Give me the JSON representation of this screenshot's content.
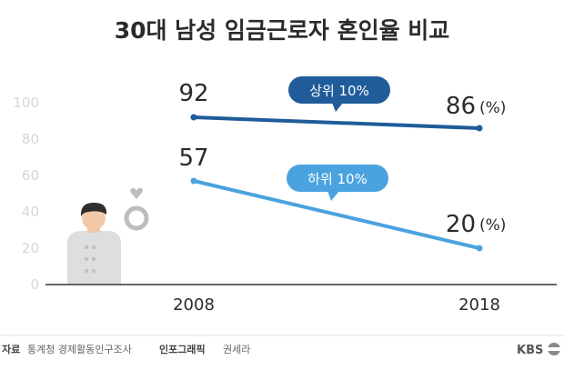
{
  "chart_data": {
    "type": "line",
    "title": "30대 남성 임금근로자 혼인율 비교",
    "categories": [
      "2008",
      "2018"
    ],
    "ylim": [
      0,
      100
    ],
    "yticks": [
      "100",
      "80",
      "60",
      "40",
      "20",
      "0"
    ],
    "unit_label": "(%)",
    "grid": false,
    "series": [
      {
        "name": "상위 10%",
        "values": [
          92,
          86
        ],
        "value_labels": [
          "92",
          "86"
        ],
        "color": "#1f5c99"
      },
      {
        "name": "하위 10%",
        "values": [
          57,
          20
        ],
        "value_labels": [
          "57",
          "20"
        ],
        "color": "#4aa3df"
      }
    ]
  },
  "footer": {
    "source_label": "자료",
    "source_text": "통계청 경제활동인구조사",
    "infographic_label": "인포그래픽",
    "infographic_author": "권세라",
    "logo": "KBS"
  },
  "icons": [
    "person-icon",
    "ring-icon",
    "kbs-logo-icon"
  ]
}
